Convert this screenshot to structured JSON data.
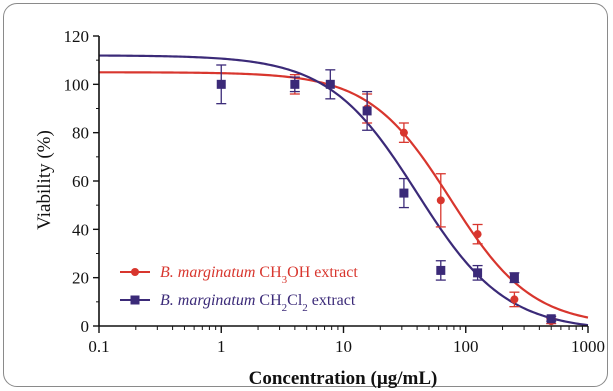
{
  "chart_data": {
    "type": "scatter",
    "xlabel": "Concentration (µg/mL)",
    "ylabel": "Viability (%)",
    "xscale": "log",
    "xlim": [
      0.1,
      1000
    ],
    "ylim": [
      0,
      120
    ],
    "x_ticks": [
      "0.1",
      "1",
      "10",
      "100",
      "1000"
    ],
    "y_ticks": [
      "0",
      "20",
      "40",
      "60",
      "80",
      "100",
      "120"
    ],
    "grid": false,
    "legend_placement": "bottom-left",
    "colors": {
      "methanol": "#d8362e",
      "dichloromethane": "#3b2a78"
    },
    "series": [
      {
        "key": "methanol",
        "name_parts": [
          {
            "text": "B. marginatum",
            "style": "italic"
          },
          {
            "text": " CH",
            "style": "normal"
          },
          {
            "text": "3",
            "style": "sub"
          },
          {
            "text": "OH extract",
            "style": "normal"
          }
        ],
        "marker": "circle",
        "points": [
          {
            "x": 4,
            "y": 100,
            "err": 4
          },
          {
            "x": 15.6,
            "y": 90,
            "err": 6
          },
          {
            "x": 31.2,
            "y": 80,
            "err": 4
          },
          {
            "x": 62.5,
            "y": 52,
            "err": 11
          },
          {
            "x": 125,
            "y": 38,
            "err": 4
          },
          {
            "x": 250,
            "y": 11,
            "err": 3
          },
          {
            "x": 500,
            "y": 2,
            "err": 1
          }
        ],
        "fit": {
          "top": 105,
          "bottom": 0,
          "ic50": 75,
          "hill": 1.3
        }
      },
      {
        "key": "dichloromethane",
        "name_parts": [
          {
            "text": "B. marginatum",
            "style": "italic"
          },
          {
            "text": " CH",
            "style": "normal"
          },
          {
            "text": "2",
            "style": "sub"
          },
          {
            "text": "Cl",
            "style": "normal"
          },
          {
            "text": "2",
            "style": "sub"
          },
          {
            "text": " extract",
            "style": "normal"
          }
        ],
        "marker": "square",
        "points": [
          {
            "x": 1,
            "y": 100,
            "err": 8
          },
          {
            "x": 4,
            "y": 100,
            "err": 3
          },
          {
            "x": 7.8,
            "y": 100,
            "err": 6
          },
          {
            "x": 15.6,
            "y": 89,
            "err": 8
          },
          {
            "x": 31.2,
            "y": 55,
            "err": 6
          },
          {
            "x": 62.5,
            "y": 23,
            "err": 4
          },
          {
            "x": 125,
            "y": 22,
            "err": 3
          },
          {
            "x": 250,
            "y": 20,
            "err": 2
          },
          {
            "x": 500,
            "y": 3,
            "err": 1
          }
        ],
        "fit": {
          "top": 112,
          "bottom": -2,
          "ic50": 40,
          "hill": 1.2
        }
      }
    ]
  }
}
